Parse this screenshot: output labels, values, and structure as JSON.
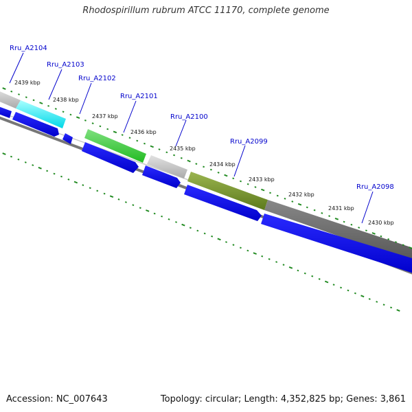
{
  "title": "Rhodospirillum rubrum ATCC 11170, complete genome",
  "footer": {
    "accession": "Accession: NC_007643",
    "summary": "Topology: circular; Length: 4,352,825 bp; Genes: 3,861"
  },
  "colors": {
    "backbone": "#777777",
    "tick": "#228B22",
    "gene_label": "#0000CC",
    "cds_arrow": "#0000EE"
  },
  "gene_labels": [
    "Rru_A2104",
    "Rru_A2103",
    "Rru_A2102",
    "Rru_A2101",
    "Rru_A2100",
    "Rru_A2099",
    "Rru_A2098"
  ],
  "kbp_labels": [
    "2439 kbp",
    "2438 kbp",
    "2437 kbp",
    "2436 kbp",
    "2435 kbp",
    "2434 kbp",
    "2433 kbp",
    "2432 kbp",
    "2431 kbp",
    "2430 kbp"
  ],
  "feature_colors": [
    "#bbbbbb",
    "#00e5ee",
    "#33cc33",
    "#cccccc",
    "#6b8e23",
    "#666666"
  ]
}
